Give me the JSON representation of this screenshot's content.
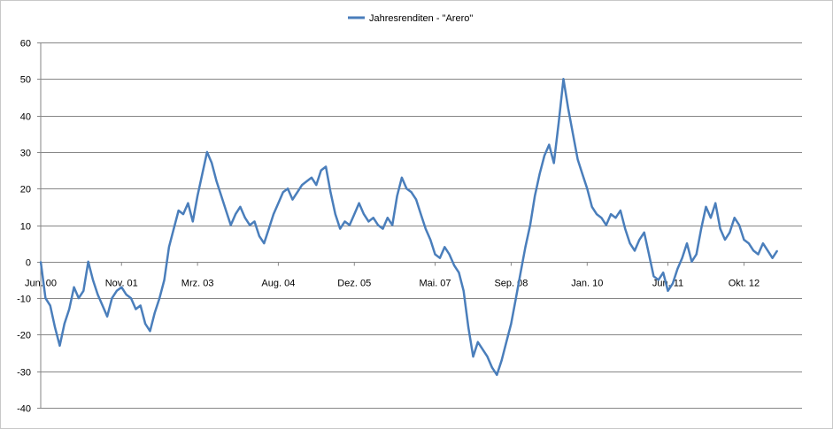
{
  "chart_data": {
    "type": "line",
    "legend_position": "top-center",
    "grid": true,
    "ylim": [
      -40,
      60
    ],
    "y_ticks": [
      -40,
      -30,
      -20,
      -10,
      0,
      10,
      20,
      30,
      40,
      50,
      60
    ],
    "x_tick_labels": [
      "Jun. 00",
      "Nov. 01",
      "Mrz. 03",
      "Aug. 04",
      "Dez. 05",
      "Mai. 07",
      "Sep. 08",
      "Jan. 10",
      "Jun. 11",
      "Okt. 12"
    ],
    "x_tick_dates": [
      "2000-06",
      "2001-11",
      "2003-03",
      "2004-08",
      "2005-12",
      "2007-05",
      "2008-09",
      "2010-01",
      "2011-06",
      "2012-10"
    ],
    "xlim": [
      "2000-06",
      "2013-05"
    ],
    "series": [
      {
        "name": "Jahresrenditen - \"Arero\"",
        "color": "#4a7ebb",
        "points": [
          [
            "2000-06",
            0
          ],
          [
            "2000-07",
            -10
          ],
          [
            "2000-08",
            -12
          ],
          [
            "2000-09",
            -18
          ],
          [
            "2000-10",
            -23
          ],
          [
            "2000-11",
            -17
          ],
          [
            "2000-12",
            -13
          ],
          [
            "2001-01",
            -7
          ],
          [
            "2001-02",
            -10
          ],
          [
            "2001-03",
            -8
          ],
          [
            "2001-04",
            0
          ],
          [
            "2001-05",
            -5
          ],
          [
            "2001-06",
            -9
          ],
          [
            "2001-07",
            -12
          ],
          [
            "2001-08",
            -15
          ],
          [
            "2001-09",
            -10
          ],
          [
            "2001-10",
            -8
          ],
          [
            "2001-11",
            -7
          ],
          [
            "2001-12",
            -9
          ],
          [
            "2002-01",
            -10
          ],
          [
            "2002-02",
            -13
          ],
          [
            "2002-03",
            -12
          ],
          [
            "2002-04",
            -17
          ],
          [
            "2002-05",
            -19
          ],
          [
            "2002-06",
            -14
          ],
          [
            "2002-07",
            -10
          ],
          [
            "2002-08",
            -5
          ],
          [
            "2002-09",
            4
          ],
          [
            "2002-10",
            9
          ],
          [
            "2002-11",
            14
          ],
          [
            "2002-12",
            13
          ],
          [
            "2003-01",
            16
          ],
          [
            "2003-02",
            11
          ],
          [
            "2003-03",
            18
          ],
          [
            "2003-04",
            24
          ],
          [
            "2003-05",
            30
          ],
          [
            "2003-06",
            27
          ],
          [
            "2003-07",
            22
          ],
          [
            "2003-08",
            18
          ],
          [
            "2003-09",
            14
          ],
          [
            "2003-10",
            10
          ],
          [
            "2003-11",
            13
          ],
          [
            "2003-12",
            15
          ],
          [
            "2004-01",
            12
          ],
          [
            "2004-02",
            10
          ],
          [
            "2004-03",
            11
          ],
          [
            "2004-04",
            7
          ],
          [
            "2004-05",
            5
          ],
          [
            "2004-06",
            9
          ],
          [
            "2004-07",
            13
          ],
          [
            "2004-08",
            16
          ],
          [
            "2004-09",
            19
          ],
          [
            "2004-10",
            20
          ],
          [
            "2004-11",
            17
          ],
          [
            "2004-12",
            19
          ],
          [
            "2005-01",
            21
          ],
          [
            "2005-02",
            22
          ],
          [
            "2005-03",
            23
          ],
          [
            "2005-04",
            21
          ],
          [
            "2005-05",
            25
          ],
          [
            "2005-06",
            26
          ],
          [
            "2005-07",
            19
          ],
          [
            "2005-08",
            13
          ],
          [
            "2005-09",
            9
          ],
          [
            "2005-10",
            11
          ],
          [
            "2005-11",
            10
          ],
          [
            "2005-12",
            13
          ],
          [
            "2006-01",
            16
          ],
          [
            "2006-02",
            13
          ],
          [
            "2006-03",
            11
          ],
          [
            "2006-04",
            12
          ],
          [
            "2006-05",
            10
          ],
          [
            "2006-06",
            9
          ],
          [
            "2006-07",
            12
          ],
          [
            "2006-08",
            10
          ],
          [
            "2006-09",
            18
          ],
          [
            "2006-10",
            23
          ],
          [
            "2006-11",
            20
          ],
          [
            "2006-12",
            19
          ],
          [
            "2007-01",
            17
          ],
          [
            "2007-02",
            13
          ],
          [
            "2007-03",
            9
          ],
          [
            "2007-04",
            6
          ],
          [
            "2007-05",
            2
          ],
          [
            "2007-06",
            1
          ],
          [
            "2007-07",
            4
          ],
          [
            "2007-08",
            2
          ],
          [
            "2007-09",
            -1
          ],
          [
            "2007-10",
            -3
          ],
          [
            "2007-11",
            -8
          ],
          [
            "2007-12",
            -18
          ],
          [
            "2008-01",
            -26
          ],
          [
            "2008-02",
            -22
          ],
          [
            "2008-03",
            -24
          ],
          [
            "2008-04",
            -26
          ],
          [
            "2008-05",
            -29
          ],
          [
            "2008-06",
            -31
          ],
          [
            "2008-07",
            -27
          ],
          [
            "2008-08",
            -22
          ],
          [
            "2008-09",
            -17
          ],
          [
            "2008-10",
            -10
          ],
          [
            "2008-11",
            -3
          ],
          [
            "2008-12",
            4
          ],
          [
            "2009-01",
            10
          ],
          [
            "2009-02",
            18
          ],
          [
            "2009-03",
            24
          ],
          [
            "2009-04",
            29
          ],
          [
            "2009-05",
            32
          ],
          [
            "2009-06",
            27
          ],
          [
            "2009-07",
            38
          ],
          [
            "2009-08",
            50
          ],
          [
            "2009-09",
            42
          ],
          [
            "2009-10",
            35
          ],
          [
            "2009-11",
            28
          ],
          [
            "2009-12",
            24
          ],
          [
            "2010-01",
            20
          ],
          [
            "2010-02",
            15
          ],
          [
            "2010-03",
            13
          ],
          [
            "2010-04",
            12
          ],
          [
            "2010-05",
            10
          ],
          [
            "2010-06",
            13
          ],
          [
            "2010-07",
            12
          ],
          [
            "2010-08",
            14
          ],
          [
            "2010-09",
            9
          ],
          [
            "2010-10",
            5
          ],
          [
            "2010-11",
            3
          ],
          [
            "2010-12",
            6
          ],
          [
            "2011-01",
            8
          ],
          [
            "2011-02",
            2
          ],
          [
            "2011-03",
            -4
          ],
          [
            "2011-04",
            -5
          ],
          [
            "2011-05",
            -3
          ],
          [
            "2011-06",
            -8
          ],
          [
            "2011-07",
            -6
          ],
          [
            "2011-08",
            -2
          ],
          [
            "2011-09",
            1
          ],
          [
            "2011-10",
            5
          ],
          [
            "2011-11",
            0
          ],
          [
            "2011-12",
            2
          ],
          [
            "2012-01",
            9
          ],
          [
            "2012-02",
            15
          ],
          [
            "2012-03",
            12
          ],
          [
            "2012-04",
            16
          ],
          [
            "2012-05",
            9
          ],
          [
            "2012-06",
            6
          ],
          [
            "2012-07",
            8
          ],
          [
            "2012-08",
            12
          ],
          [
            "2012-09",
            10
          ],
          [
            "2012-10",
            6
          ],
          [
            "2012-11",
            5
          ],
          [
            "2012-12",
            3
          ],
          [
            "2013-01",
            2
          ],
          [
            "2013-02",
            5
          ],
          [
            "2013-03",
            3
          ],
          [
            "2013-04",
            1
          ],
          [
            "2013-05",
            3
          ]
        ]
      }
    ]
  }
}
